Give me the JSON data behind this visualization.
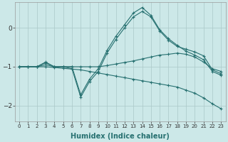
{
  "background_color": "#cce8e8",
  "grid_color": "#aac8c8",
  "line_color": "#267070",
  "xlim": [
    -0.5,
    23.5
  ],
  "ylim": [
    -2.4,
    0.65
  ],
  "yticks": [
    0,
    -1,
    -2
  ],
  "xlabel": "Humidex (Indice chaleur)",
  "series": [
    {
      "x": [
        0,
        1,
        2,
        3,
        4,
        5,
        6,
        7,
        8,
        9,
        10,
        11,
        12,
        13,
        14,
        15,
        16,
        17,
        18,
        19,
        20,
        21,
        22,
        23
      ],
      "y": [
        -1.0,
        -1.0,
        -1.0,
        -0.88,
        -1.0,
        -1.0,
        -1.0,
        -1.72,
        -1.32,
        -1.05,
        -0.58,
        -0.22,
        0.08,
        0.38,
        0.52,
        0.32,
        -0.05,
        -0.28,
        -0.45,
        -0.6,
        -0.7,
        -0.82,
        -1.12,
        -1.22
      ]
    },
    {
      "x": [
        0,
        1,
        2,
        3,
        4,
        5,
        6,
        7,
        8,
        9,
        10,
        11,
        12,
        13,
        14,
        15,
        16,
        17,
        18,
        19,
        20,
        21,
        22,
        23
      ],
      "y": [
        -1.0,
        -1.0,
        -1.0,
        -0.9,
        -1.0,
        -1.0,
        -1.05,
        -1.78,
        -1.38,
        -1.12,
        -0.65,
        -0.3,
        0.0,
        0.28,
        0.42,
        0.28,
        -0.08,
        -0.32,
        -0.48,
        -0.55,
        -0.62,
        -0.72,
        -1.08,
        -1.18
      ]
    },
    {
      "x": [
        0,
        1,
        2,
        3,
        4,
        5,
        6,
        7,
        8,
        9,
        10,
        11,
        12,
        13,
        14,
        15,
        16,
        17,
        18,
        19,
        20,
        21,
        22,
        23
      ],
      "y": [
        -1.0,
        -1.0,
        -1.0,
        -0.95,
        -1.0,
        -1.0,
        -1.0,
        -1.0,
        -1.0,
        -1.0,
        -0.97,
        -0.93,
        -0.89,
        -0.85,
        -0.8,
        -0.75,
        -0.7,
        -0.68,
        -0.65,
        -0.68,
        -0.75,
        -0.88,
        -1.05,
        -1.12
      ]
    },
    {
      "x": [
        0,
        1,
        2,
        3,
        4,
        5,
        6,
        7,
        8,
        9,
        10,
        11,
        12,
        13,
        14,
        15,
        16,
        17,
        18,
        19,
        20,
        21,
        22,
        23
      ],
      "y": [
        -1.0,
        -1.0,
        -1.0,
        -1.0,
        -1.02,
        -1.04,
        -1.06,
        -1.08,
        -1.12,
        -1.16,
        -1.2,
        -1.24,
        -1.28,
        -1.32,
        -1.36,
        -1.4,
        -1.44,
        -1.48,
        -1.52,
        -1.6,
        -1.68,
        -1.8,
        -1.95,
        -2.08
      ]
    }
  ]
}
